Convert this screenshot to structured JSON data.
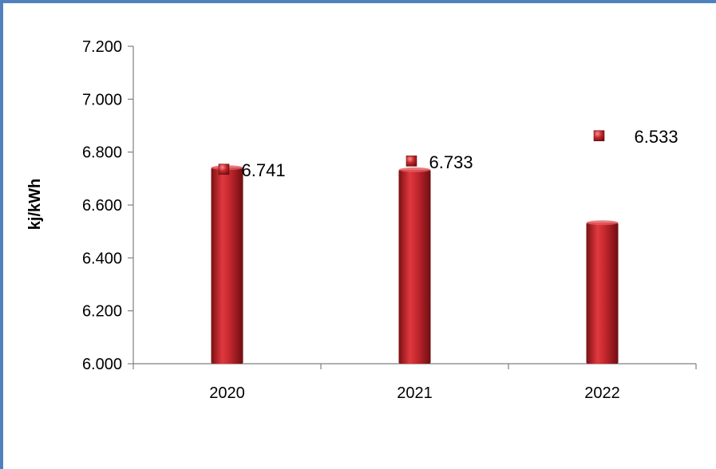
{
  "chart_data": {
    "type": "bar",
    "categories": [
      "2020",
      "2021",
      "2022"
    ],
    "values": [
      6741,
      6733,
      6533
    ],
    "value_labels": [
      "6.741",
      "6.733",
      "6.533"
    ],
    "ylabel": "kj/kWh",
    "ylim": [
      6000,
      7200
    ],
    "yticks": [
      6000,
      6200,
      6400,
      6600,
      6800,
      7000,
      7200
    ],
    "ytick_labels": [
      "6.000",
      "6.200",
      "6.400",
      "6.600",
      "6.800",
      "7.000",
      "7.200"
    ],
    "grid": false,
    "legend": "none",
    "bar_color": "#c0262c",
    "marker_color": "#c0262c"
  }
}
